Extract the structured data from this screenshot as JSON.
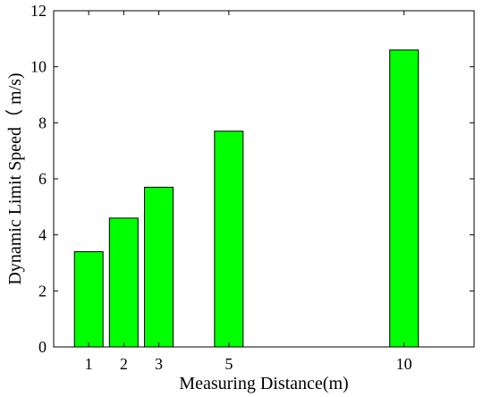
{
  "chart_data": {
    "type": "bar",
    "categories": [
      "1",
      "2",
      "3",
      "5",
      "10"
    ],
    "x": [
      1,
      2,
      3,
      5,
      10
    ],
    "values": [
      3.4,
      4.6,
      5.7,
      7.7,
      10.6
    ],
    "xlabel": "Measuring Distance(m)",
    "ylabel": "Dynamic Limit Speed（ m/s)",
    "ylim": [
      0,
      12
    ],
    "yticks": [
      "0",
      "2",
      "4",
      "6",
      "8",
      "10",
      "12"
    ],
    "xlim": [
      0,
      12
    ],
    "bar_color": "#00ff00",
    "bar_edge_color": "#000000",
    "grid": false,
    "legend": "none"
  }
}
